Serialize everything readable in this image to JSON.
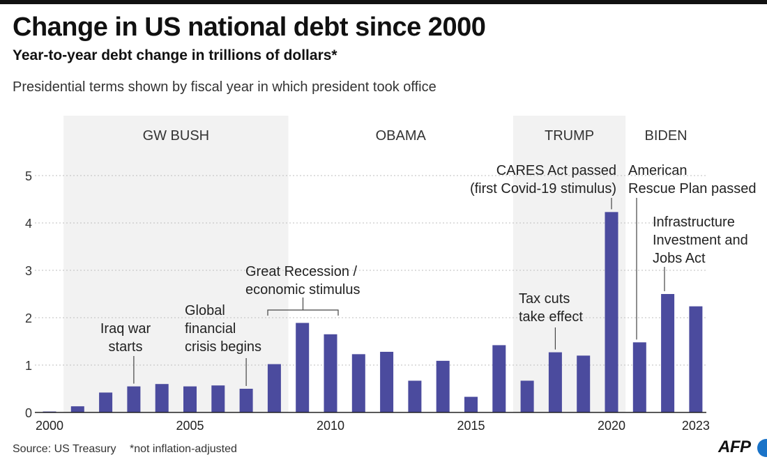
{
  "header": {
    "title": "Change in US national debt since 2000",
    "subtitle": "Year-to-year debt change in trillions of dollars*",
    "note": "Presidential terms shown by fiscal year in which president took office"
  },
  "footer": {
    "source": "Source: US Treasury",
    "footnote": "*not inflation-adjusted",
    "logo": "AFP"
  },
  "colors": {
    "bar": "#4b4b9e",
    "term_band": "#f2f2f2",
    "logo_dot": "#1a73c8"
  },
  "chart_data": {
    "type": "bar",
    "title": "Change in US national debt since 2000",
    "subtitle": "Year-to-year debt change in trillions of dollars*",
    "x": [
      2000,
      2001,
      2002,
      2003,
      2004,
      2005,
      2006,
      2007,
      2008,
      2009,
      2010,
      2011,
      2012,
      2013,
      2014,
      2015,
      2016,
      2017,
      2018,
      2019,
      2020,
      2021,
      2022,
      2023
    ],
    "values": [
      0.02,
      0.13,
      0.42,
      0.55,
      0.6,
      0.55,
      0.57,
      0.5,
      1.02,
      1.89,
      1.65,
      1.23,
      1.28,
      0.67,
      1.09,
      0.33,
      1.42,
      0.67,
      1.27,
      1.2,
      4.23,
      1.48,
      2.5,
      2.24
    ],
    "xticks": [
      "2000",
      "2005",
      "2010",
      "2015",
      "2020",
      "2023"
    ],
    "yticks": [
      "0",
      "1",
      "2",
      "3",
      "4",
      "5"
    ],
    "ylim": [
      0,
      5.5
    ],
    "grid": true,
    "xlabel": "",
    "ylabel": "",
    "terms": [
      {
        "name": "GW BUSH",
        "start": 2001,
        "end": 2008,
        "shaded": true
      },
      {
        "name": "OBAMA",
        "start": 2009,
        "end": 2016,
        "shaded": false
      },
      {
        "name": "TRUMP",
        "start": 2017,
        "end": 2020,
        "shaded": true
      },
      {
        "name": "BIDEN",
        "start": 2021,
        "end": 2023,
        "shaded": false
      }
    ],
    "annotations": [
      {
        "lines": [
          "Iraq war",
          "starts"
        ],
        "year": 2003
      },
      {
        "lines": [
          "Global",
          "financial",
          "crisis begins"
        ],
        "year": 2007
      },
      {
        "lines": [
          "Great Recession /",
          "economic stimulus"
        ],
        "year_start": 2008,
        "year_end": 2010
      },
      {
        "lines": [
          "Tax cuts",
          "take effect"
        ],
        "year": 2018
      },
      {
        "lines": [
          "CARES Act passed",
          "(first Covid-19 stimulus)"
        ],
        "year": 2020
      },
      {
        "lines": [
          "American",
          "Rescue Plan passed"
        ],
        "year": 2021
      },
      {
        "lines": [
          "Infrastructure",
          "Investment and",
          "Jobs Act"
        ],
        "year": 2022
      }
    ]
  }
}
